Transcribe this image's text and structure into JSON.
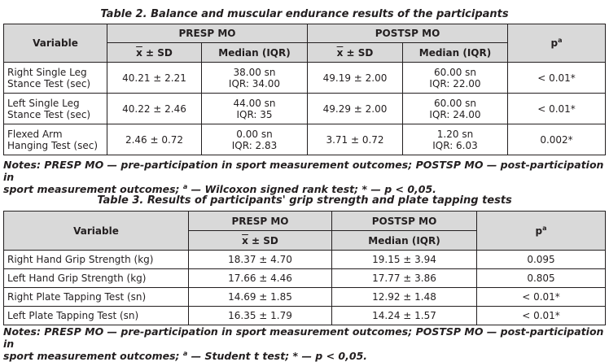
{
  "table2": {
    "caption": "Table 2. Balance and muscular endurance results of the participants",
    "headers": {
      "variable": "Variable",
      "presp": "PRESP MO",
      "postsp": "POSTSP MO",
      "p": "p",
      "p_sup": "a",
      "mean_sd_x": "x",
      "mean_sd_rest": " ± SD",
      "median": "Median (IQR)"
    },
    "rows": [
      {
        "variable": [
          "Right Single Leg",
          "Stance Test (sec)"
        ],
        "pre_mean": "40.21 ± 2.21",
        "pre_median": [
          "38.00 sn",
          "IQR: 34.00"
        ],
        "post_mean": "49.19 ± 2.00",
        "post_median": [
          "60.00 sn",
          "IQR: 22.00"
        ],
        "p": "< 0.01*"
      },
      {
        "variable": [
          "Left Single Leg",
          "Stance Test (sec)"
        ],
        "pre_mean": "40.22 ± 2.46",
        "pre_median": [
          "44.00 sn",
          "IQR: 35"
        ],
        "post_mean": "49.29 ± 2.00",
        "post_median": [
          "60.00 sn",
          "IQR: 24.00"
        ],
        "p": "< 0.01*"
      },
      {
        "variable": [
          "Flexed Arm",
          "Hanging Test (sec)"
        ],
        "pre_mean": "2.46 ± 0.72",
        "pre_median": [
          "0.00 sn",
          "IQR: 2.83"
        ],
        "post_mean": "3.71 ± 0.72",
        "post_median": [
          "1.20 sn",
          "IQR: 6.03"
        ],
        "p": "0.002*"
      }
    ],
    "notes": {
      "line1": "Notes: PRESP MO — pre-participation in sport measurement outcomes; POSTSP MO — post-participation in",
      "line2a": "sport measurement outcomes; ",
      "line2_sup": "a",
      "line2b": " — Wilcoxon signed rank test; * — p < 0,05."
    }
  },
  "table3": {
    "caption": "Table 3. Results of participants' grip strength and plate tapping tests",
    "headers": {
      "variable": "Variable",
      "presp": "PRESP MO",
      "postsp": "POSTSP MO",
      "p": "p",
      "p_sup": "a",
      "mean_sd_x": "x",
      "mean_sd_rest": " ± SD",
      "median": "Median (IQR)"
    },
    "rows": [
      {
        "variable": "Right Hand Grip Strength (kg)",
        "pre": "18.37 ± 4.70",
        "post": "19.15 ± 3.94",
        "p": "0.095"
      },
      {
        "variable": "Left Hand Grip Strength (kg)",
        "pre": "17.66 ± 4.46",
        "post": "17.77 ± 3.86",
        "p": "0.805"
      },
      {
        "variable": "Right Plate Tapping Test (sn)",
        "pre": "14.69 ± 1.85",
        "post": "12.92 ± 1.48",
        "p": "< 0.01*"
      },
      {
        "variable": "Left Plate Tapping Test (sn)",
        "pre": "16.35 ± 1.79",
        "post": "14.24 ± 1.57",
        "p": "< 0.01*"
      }
    ],
    "notes": {
      "line1": "Notes: PRESP MO — pre-participation in sport measurement outcomes; POSTSP MO — post-participation in",
      "line2a": "sport measurement outcomes; ",
      "line2_sup": "a",
      "line2b": " — Student t test; * — p < 0,05."
    }
  }
}
